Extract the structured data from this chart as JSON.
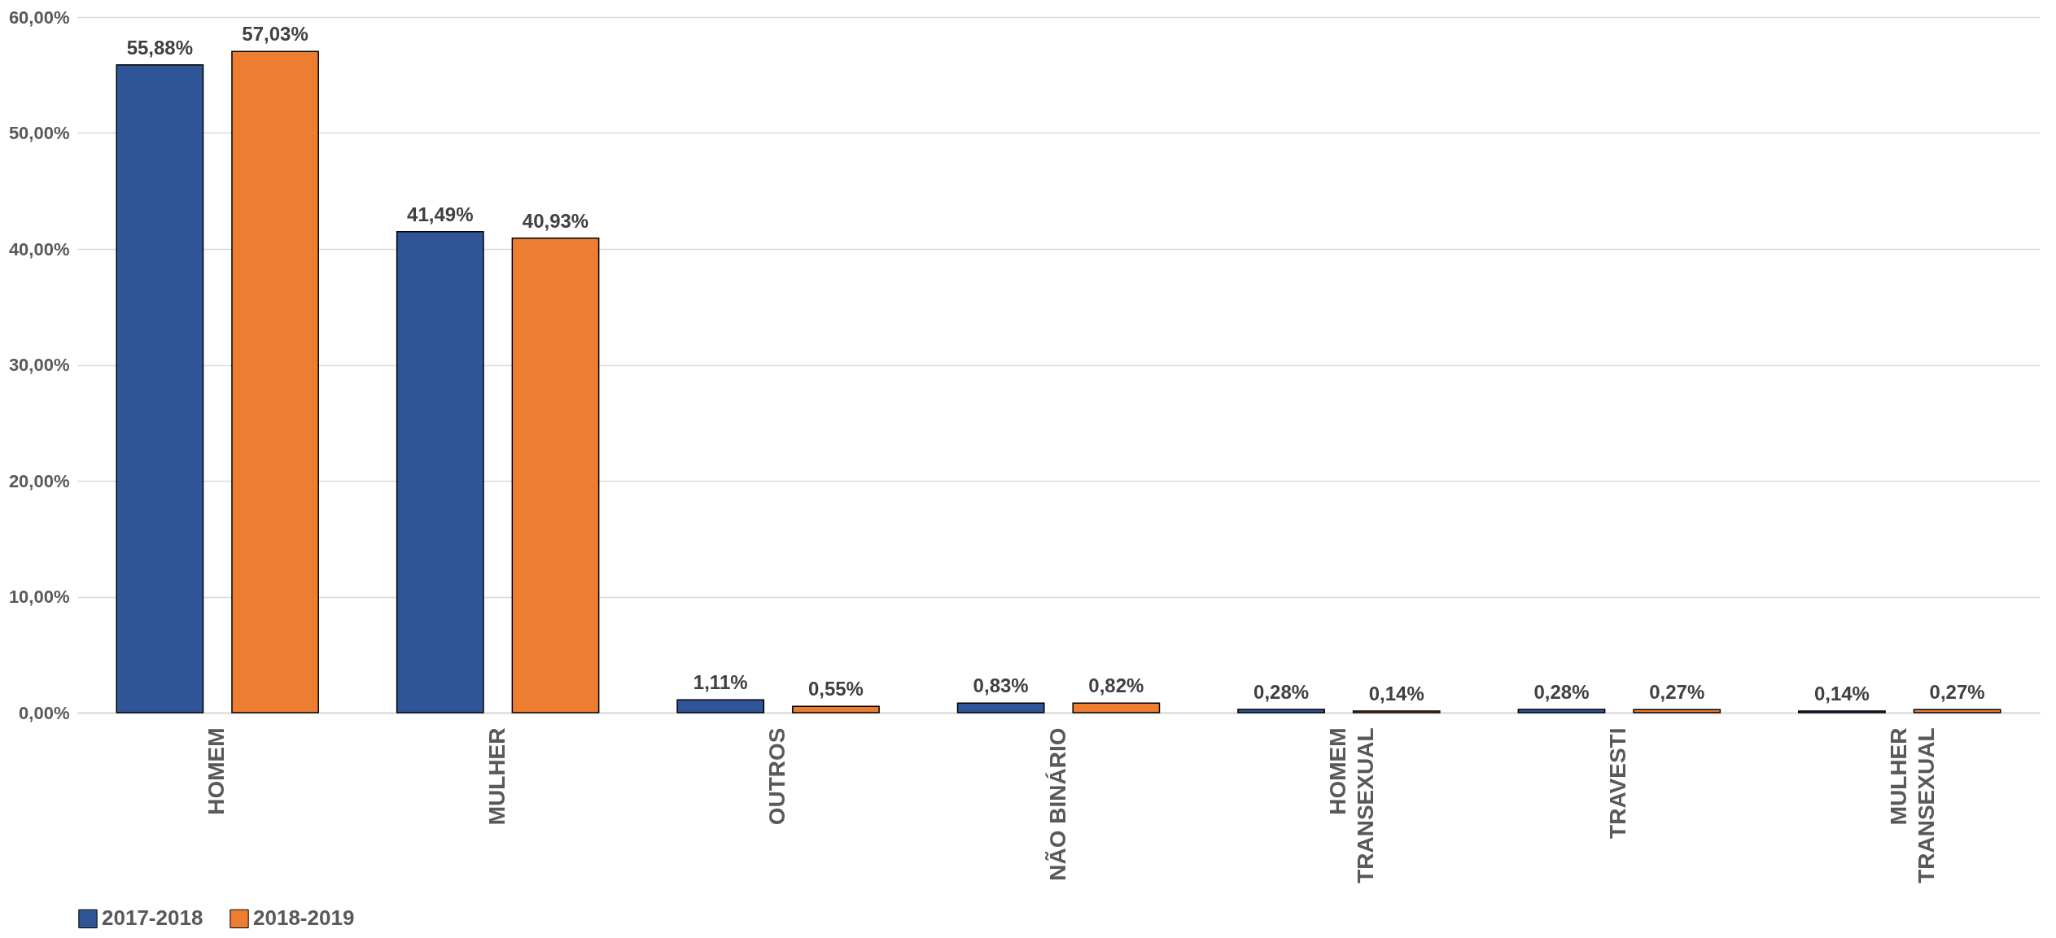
{
  "chart_data": {
    "type": "bar",
    "categories": [
      "HOMEM",
      "MULHER",
      "OUTROS",
      "NÃO BINÁRIO",
      "HOMEM TRANSEXUAL",
      "TRAVESTI",
      "MULHER TRANSEXUAL"
    ],
    "series": [
      {
        "name": "2017-2018",
        "color": "#2f5597",
        "values": [
          55.88,
          41.49,
          1.11,
          0.83,
          0.28,
          0.28,
          0.14
        ],
        "value_labels": [
          "55,88%",
          "41,49%",
          "1,11%",
          "0,83%",
          "0,28%",
          "0,28%",
          "0,14%"
        ]
      },
      {
        "name": "2018-2019",
        "color": "#ed7d31",
        "values": [
          57.03,
          40.93,
          0.55,
          0.82,
          0.14,
          0.27,
          0.27
        ],
        "value_labels": [
          "57,03%",
          "40,93%",
          "0,55%",
          "0,82%",
          "0,14%",
          "0,27%",
          "0,27%"
        ]
      }
    ],
    "ylim": [
      0,
      60
    ],
    "yticks": [
      {
        "value": 0,
        "label": "0,00%"
      },
      {
        "value": 10,
        "label": "10,00%"
      },
      {
        "value": 20,
        "label": "20,00%"
      },
      {
        "value": 30,
        "label": "30,00%"
      },
      {
        "value": 40,
        "label": "40,00%"
      },
      {
        "value": 50,
        "label": "50,00%"
      },
      {
        "value": 60,
        "label": "60,00%"
      }
    ],
    "grid": "y",
    "legend": "bottom"
  }
}
